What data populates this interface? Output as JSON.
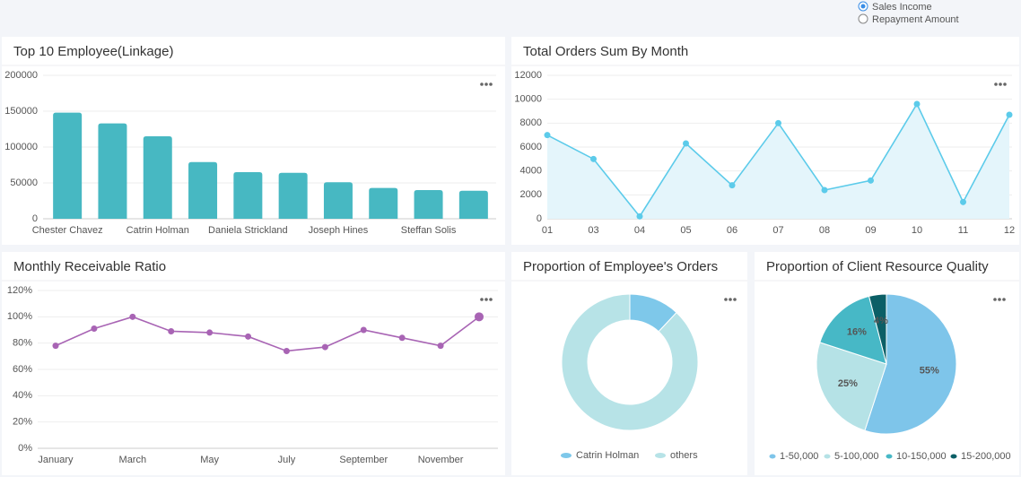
{
  "controls": {
    "options": [
      "Sales Income",
      "Repayment Amount"
    ],
    "selected": 0
  },
  "chart_data": [
    {
      "type": "bar",
      "title": "Top 10 Employee(Linkage)",
      "categories": [
        "Chester Chavez",
        null,
        "Catrin Holman",
        null,
        "Daniela Strickland",
        null,
        "Joseph Hines",
        null,
        "Steffan Solis",
        null
      ],
      "values": [
        148000,
        133000,
        115000,
        79000,
        65000,
        64000,
        51000,
        43000,
        40000,
        39000
      ],
      "color": "#47b8c2",
      "ylim": [
        0,
        200000
      ],
      "yticks": [
        0,
        50000,
        100000,
        150000,
        200000
      ],
      "grid": true
    },
    {
      "type": "area",
      "title": "Total Orders Sum By Month",
      "categories": [
        "01",
        "03",
        "04",
        "05",
        "06",
        "07",
        "08",
        "09",
        "10",
        "11",
        "12"
      ],
      "values": [
        7000,
        5000,
        200,
        6300,
        2800,
        8000,
        2400,
        3200,
        9600,
        1400,
        8700
      ],
      "color": "#5ccbea",
      "fill": "#e4f5fb",
      "ylim": [
        0,
        12000
      ],
      "yticks": [
        0,
        2000,
        4000,
        6000,
        8000,
        10000,
        12000
      ],
      "grid": true
    },
    {
      "type": "line",
      "title": "Monthly Receivable Ratio",
      "categories": [
        "January",
        null,
        "March",
        null,
        "May",
        null,
        "July",
        null,
        "September",
        null,
        "November",
        null
      ],
      "values": [
        78,
        91,
        100,
        89,
        88,
        85,
        74,
        77,
        90,
        84,
        78,
        100
      ],
      "color": "#a864b4",
      "ylim": [
        0,
        120
      ],
      "yticks": [
        {
          "value": 0,
          "label": "0%"
        },
        {
          "value": 20,
          "label": "20%"
        },
        {
          "value": 40,
          "label": "40%"
        },
        {
          "value": 60,
          "label": "60%"
        },
        {
          "value": 80,
          "label": "80%"
        },
        {
          "value": 100,
          "label": "100%"
        },
        {
          "value": 120,
          "label": "120%"
        }
      ],
      "grid": true
    },
    {
      "type": "donut",
      "title": "Proportion of Employee's Orders",
      "categories": [
        "Catrin Holman",
        "others"
      ],
      "values": [
        12,
        88
      ],
      "colors": [
        "#7ec8ea",
        "#b7e3e7"
      ]
    },
    {
      "type": "pie",
      "title": "Proportion of Client Resource Quality",
      "categories": [
        "1-50,000",
        "5-100,000",
        "10-150,000",
        "15-200,000"
      ],
      "values": [
        55,
        25,
        16,
        4
      ],
      "value_labels": [
        "55%",
        "25%",
        "16%",
        "4%"
      ],
      "colors": [
        "#7ec5ea",
        "#b5e2e6",
        "#47b8c6",
        "#0b5f66"
      ]
    }
  ]
}
